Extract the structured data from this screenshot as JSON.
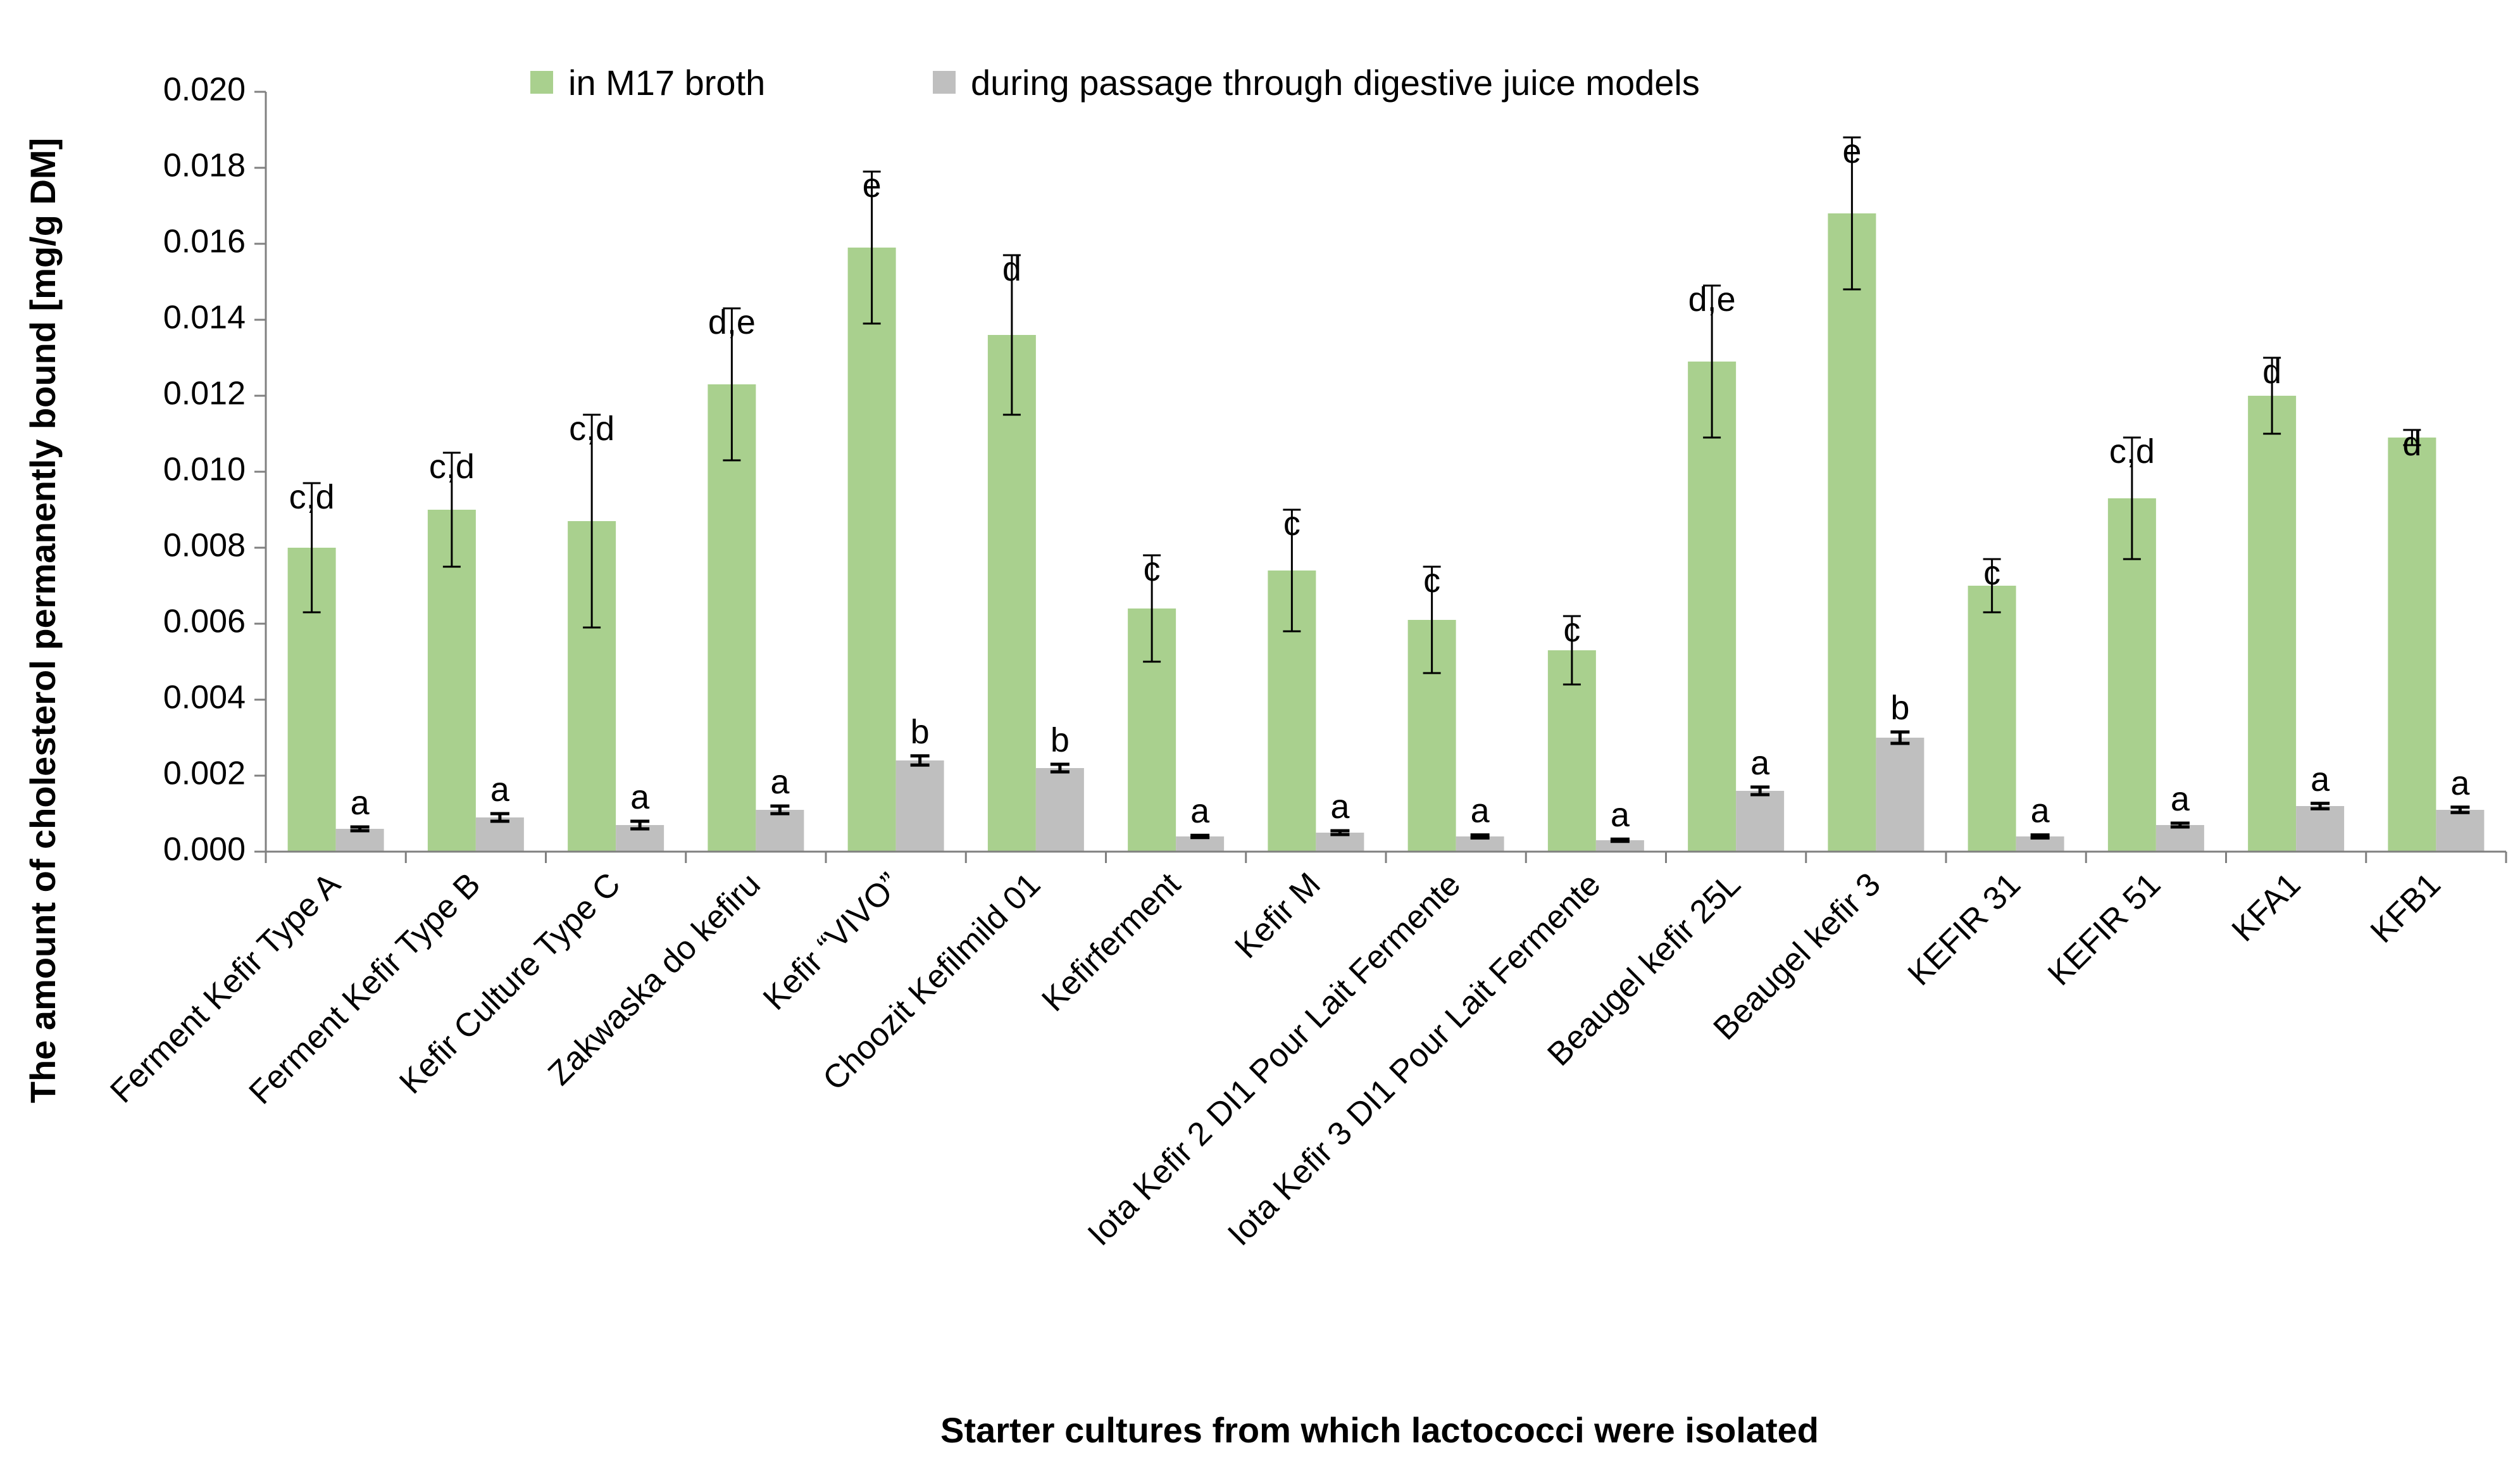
{
  "chart_data": {
    "type": "bar",
    "title": "",
    "xlabel": "Starter cultures from which lactococci were isolated",
    "ylabel": "The amount of cholesterol permanently bound [mg/g DM]",
    "ylim": [
      0,
      0.02
    ],
    "yticks": [
      "0.000",
      "0.002",
      "0.004",
      "0.006",
      "0.008",
      "0.010",
      "0.012",
      "0.014",
      "0.016",
      "0.018",
      "0.020"
    ],
    "legend_position": "top",
    "categories": [
      "Ferment Kefir Type A",
      "Ferment Kefir Type B",
      "Kefir Culture Type C",
      "Zakwaska do kefiru",
      "Kefir “VIVO”",
      "Choozit Kefilmild 01",
      "Kefirferment",
      "Kefir M",
      "Iota Kefir 2 DI1 Pour Lait Fermente",
      "Iota Kefir 3 DI1 Pour Lait Fermente",
      "Beaugel kefir 25L",
      "Beaugel kefir 3",
      "KEFIR 31",
      "KEFIR 51",
      "KFA1",
      "KFB1"
    ],
    "series": [
      {
        "name": "in M17 broth",
        "color": "#a9d08e",
        "values": [
          0.008,
          0.009,
          0.0087,
          0.0123,
          0.0159,
          0.0136,
          0.0064,
          0.0074,
          0.0061,
          0.0053,
          0.0129,
          0.0168,
          0.007,
          0.0093,
          0.012,
          0.0109
        ],
        "errors": [
          0.0017,
          0.0015,
          0.0028,
          0.002,
          0.002,
          0.0021,
          0.0014,
          0.0016,
          0.0014,
          0.0009,
          0.002,
          0.002,
          0.0007,
          0.0016,
          0.001,
          0.0002
        ],
        "labels": [
          "c,d",
          "c,d",
          "c,d",
          "d,e",
          "e",
          "d",
          "c",
          "c",
          "c",
          "c",
          "d,e",
          "e",
          "c",
          "c,d",
          "d",
          "d"
        ]
      },
      {
        "name": "during passage through digestive juice models",
        "color": "#bfbfbf",
        "values": [
          0.0006,
          0.0009,
          0.0007,
          0.0011,
          0.0024,
          0.0022,
          0.0004,
          0.0005,
          0.0004,
          0.0003,
          0.0016,
          0.003,
          0.0004,
          0.0007,
          0.0012,
          0.0011
        ],
        "errors": [
          5e-05,
          0.0001,
          0.0001,
          0.0001,
          0.00012,
          0.0001,
          3e-05,
          5e-05,
          4e-05,
          3e-05,
          0.0001,
          0.00015,
          4e-05,
          5e-05,
          7e-05,
          7e-05
        ],
        "labels": [
          "a",
          "a",
          "a",
          "a",
          "b",
          "b",
          "a",
          "a",
          "a",
          "a",
          "a",
          "b",
          "a",
          "a",
          "a",
          "a"
        ]
      }
    ]
  }
}
